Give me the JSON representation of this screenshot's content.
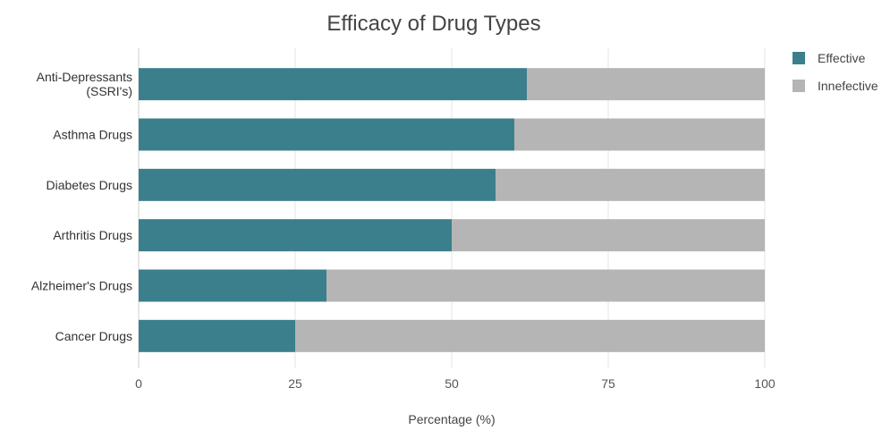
{
  "chart_data": {
    "type": "bar",
    "orientation": "horizontal",
    "stacked": true,
    "title": "Efficacy of Drug Types",
    "xlabel": "Percentage (%)",
    "ylabel": "",
    "xlim": [
      0,
      100
    ],
    "x_ticks": [
      0,
      25,
      50,
      75,
      100
    ],
    "grid": true,
    "legend_position": "top-right",
    "categories": [
      [
        "Anti-Depressants",
        "(SSRI's)"
      ],
      [
        "Asthma Drugs"
      ],
      [
        "Diabetes Drugs"
      ],
      [
        "Arthritis Drugs"
      ],
      [
        "Alzheimer's Drugs"
      ],
      [
        "Cancer Drugs"
      ]
    ],
    "series": [
      {
        "name": "Effective",
        "color": "#3b7f8c",
        "values": [
          62,
          60,
          57,
          50,
          30,
          25
        ]
      },
      {
        "name": "Innefective",
        "color": "#b5b5b5",
        "values": [
          38,
          40,
          43,
          50,
          70,
          75
        ]
      }
    ]
  }
}
